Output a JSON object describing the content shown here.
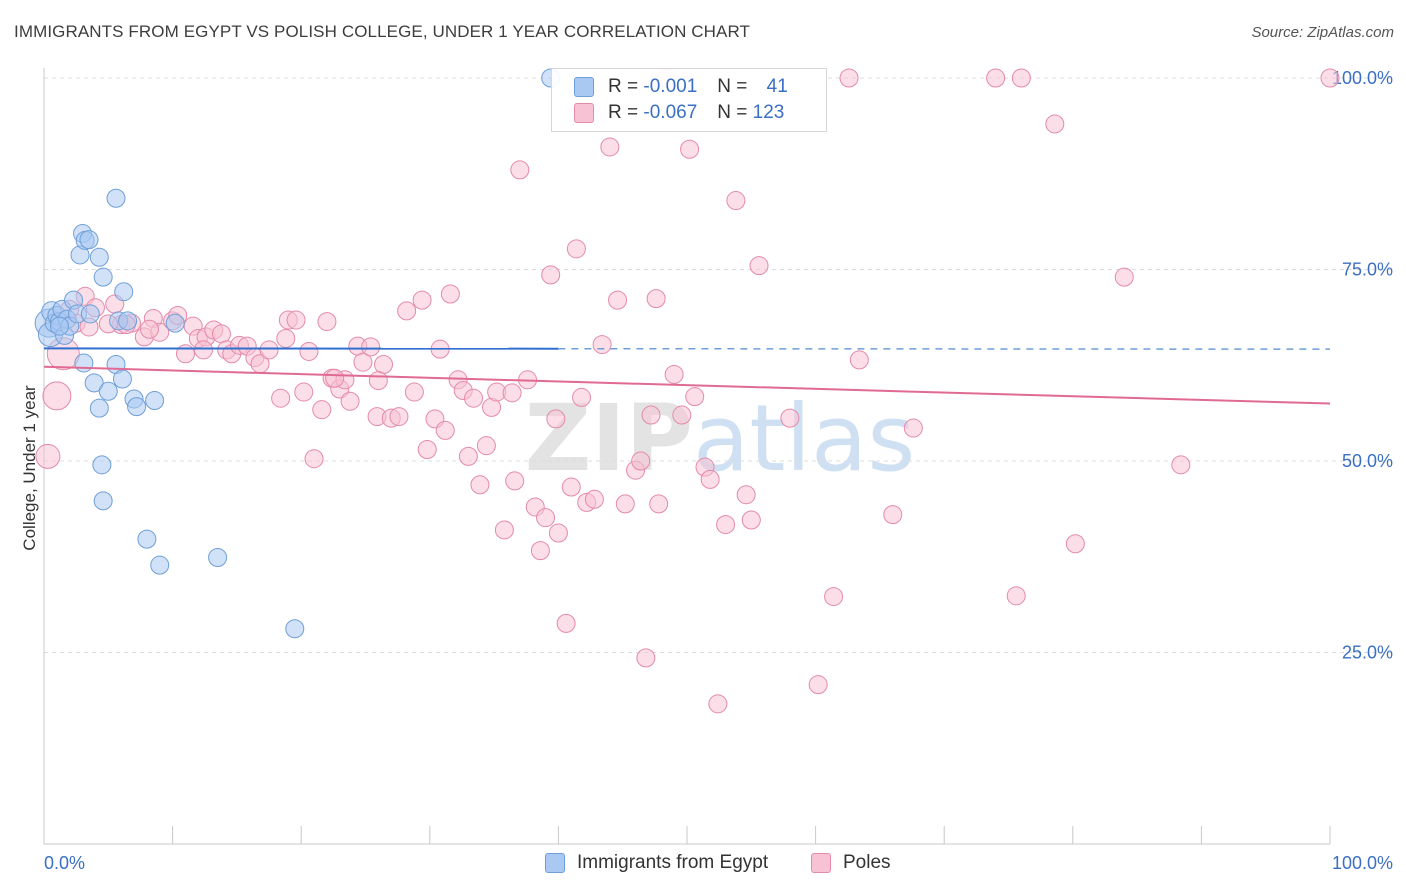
{
  "title": "IMMIGRANTS FROM EGYPT VS POLISH COLLEGE, UNDER 1 YEAR CORRELATION CHART",
  "source": "Source: ZipAtlas.com",
  "legend": {
    "r_label": "R =",
    "n_label": "N =",
    "rows": [
      {
        "r": "-0.001",
        "n": "41",
        "color": "#a9c8f2",
        "stroke": "#6f9fd8"
      },
      {
        "r": "-0.067",
        "n": "123",
        "color": "#f7c2d3",
        "stroke": "#e48aab"
      }
    ]
  },
  "bottom_legend": [
    {
      "label": "Immigrants from Egypt",
      "color": "#a9c8f2",
      "stroke": "#6f9fd8"
    },
    {
      "label": "Poles",
      "color": "#f7c2d3",
      "stroke": "#e48aab"
    }
  ],
  "chart_data": {
    "type": "scatter",
    "title": "IMMIGRANTS FROM EGYPT VS POLISH COLLEGE, UNDER 1 YEAR CORRELATION CHART",
    "ylabel": "College, Under 1 year",
    "xlabel": "",
    "xlim": [
      0,
      100
    ],
    "ylim": [
      0,
      100
    ],
    "x_tick_labels": [
      "0.0%",
      "100.0%"
    ],
    "y_tick_labels": [
      "25.0%",
      "50.0%",
      "75.0%",
      "100.0%"
    ],
    "y_ticks": [
      25,
      50,
      75,
      100
    ],
    "grid": true,
    "watermark": "ZIPatlas",
    "series": [
      {
        "name": "Immigrants from Egypt",
        "color": "#a9c8f2",
        "stroke": "#6f9fd8",
        "trend": {
          "y_at_0": 64.7,
          "y_at_100": 64.6,
          "solid_until_x": 40
        },
        "points": [
          [
            0.4,
            68,
            14
          ],
          [
            0.5,
            66.5,
            12
          ],
          [
            0.6,
            69.5,
            10
          ],
          [
            0.8,
            68,
            9
          ],
          [
            1.0,
            69,
            9
          ],
          [
            1.2,
            68.2,
            9
          ],
          [
            1.4,
            69.8,
            9
          ],
          [
            1.6,
            66.4,
            9
          ],
          [
            1.8,
            68.5,
            9
          ],
          [
            2.0,
            67.6,
            9
          ],
          [
            2.3,
            71,
            9
          ],
          [
            2.6,
            69.2,
            9
          ],
          [
            2.8,
            76.9,
            9
          ],
          [
            3.0,
            79.7,
            9
          ],
          [
            3.2,
            78.8,
            9
          ],
          [
            3.5,
            78.9,
            9
          ],
          [
            3.6,
            69.2,
            9
          ],
          [
            4.3,
            76.6,
            9
          ],
          [
            4.6,
            74,
            9
          ],
          [
            5.6,
            84.3,
            9
          ],
          [
            6.2,
            72.1,
            9
          ],
          [
            5.8,
            68.3,
            9
          ],
          [
            6.5,
            68.3,
            9
          ],
          [
            3.1,
            62.8,
            9
          ],
          [
            5.6,
            62.6,
            9
          ],
          [
            3.9,
            60.2,
            9
          ],
          [
            6.1,
            60.7,
            9
          ],
          [
            5.0,
            59.1,
            9
          ],
          [
            7.0,
            58.1,
            9
          ],
          [
            8.6,
            57.9,
            9
          ],
          [
            7.2,
            57.1,
            9
          ],
          [
            4.3,
            56.9,
            9
          ],
          [
            4.5,
            49.5,
            9
          ],
          [
            4.6,
            44.8,
            9
          ],
          [
            8.0,
            39.8,
            9
          ],
          [
            9.0,
            36.4,
            9
          ],
          [
            13.5,
            37.4,
            9
          ],
          [
            19.5,
            28.1,
            9
          ],
          [
            39.4,
            100,
            9
          ],
          [
            10.2,
            68,
            9
          ],
          [
            1.2,
            67.6,
            9
          ]
        ]
      },
      {
        "name": "Poles",
        "color": "#f7c2d3",
        "stroke": "#e48aab",
        "trend": {
          "y_at_0": 62.3,
          "y_at_100": 57.5
        },
        "points": [
          [
            0.3,
            50.6,
            12
          ],
          [
            1.0,
            58.5,
            14
          ],
          [
            1.5,
            64,
            16
          ],
          [
            2.5,
            68,
            9
          ],
          [
            3.2,
            71.5,
            9
          ],
          [
            3.5,
            67.5,
            9
          ],
          [
            4.0,
            70,
            9
          ],
          [
            5.5,
            70.5,
            9
          ],
          [
            6.0,
            67.8,
            9
          ],
          [
            6.8,
            68,
            9
          ],
          [
            7.8,
            66.2,
            9
          ],
          [
            8.5,
            68.6,
            9
          ],
          [
            9.0,
            66.8,
            9
          ],
          [
            10.0,
            68.3,
            9
          ],
          [
            10.4,
            69,
            9
          ],
          [
            11.0,
            64,
            9
          ],
          [
            11.6,
            67.6,
            9
          ],
          [
            12.0,
            66,
            9
          ],
          [
            12.6,
            66.2,
            9
          ],
          [
            13.2,
            67.1,
            9
          ],
          [
            13.8,
            66.6,
            9
          ],
          [
            14.2,
            64.5,
            9
          ],
          [
            14.6,
            64,
            9
          ],
          [
            15.2,
            65.1,
            9
          ],
          [
            15.8,
            65,
            9
          ],
          [
            16.4,
            63.5,
            9
          ],
          [
            16.8,
            62.7,
            9
          ],
          [
            17.5,
            64.5,
            9
          ],
          [
            18.4,
            58.2,
            9
          ],
          [
            19.0,
            68.4,
            9
          ],
          [
            19.6,
            68.4,
            9
          ],
          [
            20.2,
            59,
            9
          ],
          [
            20.6,
            64.3,
            9
          ],
          [
            21.0,
            50.3,
            9
          ],
          [
            21.6,
            56.7,
            9
          ],
          [
            22.0,
            68.2,
            9
          ],
          [
            22.4,
            60.8,
            9
          ],
          [
            23.0,
            59.4,
            9
          ],
          [
            23.4,
            60.6,
            9
          ],
          [
            23.8,
            57.8,
            9
          ],
          [
            24.4,
            65,
            9
          ],
          [
            24.8,
            62.9,
            9
          ],
          [
            25.4,
            64.9,
            9
          ],
          [
            25.9,
            55.8,
            9
          ],
          [
            26.4,
            62.6,
            9
          ],
          [
            27.0,
            55.6,
            9
          ],
          [
            27.6,
            55.8,
            9
          ],
          [
            28.2,
            69.6,
            9
          ],
          [
            28.8,
            59,
            9
          ],
          [
            29.4,
            71,
            9
          ],
          [
            29.8,
            51.5,
            9
          ],
          [
            30.4,
            55.5,
            9
          ],
          [
            30.8,
            64.6,
            9
          ],
          [
            31.2,
            54,
            9
          ],
          [
            31.6,
            71.8,
            9
          ],
          [
            32.2,
            60.6,
            9
          ],
          [
            32.6,
            59.2,
            9
          ],
          [
            33.0,
            50.6,
            9
          ],
          [
            33.4,
            58.2,
            9
          ],
          [
            33.9,
            46.9,
            9
          ],
          [
            34.4,
            52,
            9
          ],
          [
            34.8,
            57,
            9
          ],
          [
            35.2,
            59,
            9
          ],
          [
            35.8,
            41,
            9
          ],
          [
            36.4,
            58.9,
            9
          ],
          [
            37.0,
            88,
            9
          ],
          [
            37.6,
            60.6,
            9
          ],
          [
            38.2,
            44,
            9
          ],
          [
            38.6,
            38.3,
            9
          ],
          [
            39.0,
            42.6,
            9
          ],
          [
            39.4,
            74.3,
            9
          ],
          [
            40.0,
            40.6,
            9
          ],
          [
            40.6,
            28.8,
            9
          ],
          [
            41.0,
            46.6,
            9
          ],
          [
            41.4,
            77.7,
            9
          ],
          [
            41.8,
            58.3,
            9
          ],
          [
            42.2,
            44.6,
            9
          ],
          [
            42.8,
            45,
            9
          ],
          [
            43.4,
            65.2,
            9
          ],
          [
            44.0,
            91,
            9
          ],
          [
            45.2,
            44.4,
            9
          ],
          [
            46.0,
            48.8,
            9
          ],
          [
            46.4,
            50,
            9
          ],
          [
            46.8,
            24.3,
            9
          ],
          [
            47.2,
            56,
            9
          ],
          [
            47.8,
            44.4,
            9
          ],
          [
            48.4,
            100,
            9
          ],
          [
            49.0,
            61.3,
            9
          ],
          [
            49.6,
            56,
            9
          ],
          [
            50.2,
            90.7,
            9
          ],
          [
            50.6,
            58.4,
            9
          ],
          [
            51.4,
            49.2,
            9
          ],
          [
            51.8,
            47.6,
            9
          ],
          [
            53.0,
            41.7,
            9
          ],
          [
            53.8,
            84,
            9
          ],
          [
            54.6,
            45.6,
            9
          ],
          [
            55.0,
            42.3,
            9
          ],
          [
            55.6,
            75.5,
            9
          ],
          [
            58.0,
            55.6,
            9
          ],
          [
            60.2,
            20.8,
            9
          ],
          [
            61.4,
            32.3,
            9
          ],
          [
            62.6,
            100,
            9
          ],
          [
            63.4,
            63.2,
            9
          ],
          [
            66.0,
            43,
            9
          ],
          [
            67.6,
            54.3,
            9
          ],
          [
            74.0,
            100,
            9
          ],
          [
            76.0,
            100,
            9
          ],
          [
            75.6,
            32.4,
            9
          ],
          [
            78.6,
            94,
            9
          ],
          [
            80.2,
            39.2,
            9
          ],
          [
            84.0,
            74,
            9
          ],
          [
            88.4,
            49.5,
            9
          ],
          [
            100,
            100,
            9
          ],
          [
            36.6,
            47.4,
            9
          ],
          [
            44.6,
            71,
            9
          ],
          [
            47.6,
            71.2,
            9
          ],
          [
            52.4,
            18.3,
            9
          ],
          [
            22.6,
            60.8,
            9
          ],
          [
            6.4,
            67.8,
            9
          ],
          [
            2.0,
            69.8,
            9
          ],
          [
            5.0,
            67.9,
            9
          ],
          [
            8.2,
            67.2,
            9
          ],
          [
            12.4,
            64.5,
            9
          ],
          [
            18.8,
            66,
            9
          ],
          [
            26.0,
            60.5,
            9
          ],
          [
            39.8,
            55.5,
            9
          ]
        ]
      }
    ]
  }
}
